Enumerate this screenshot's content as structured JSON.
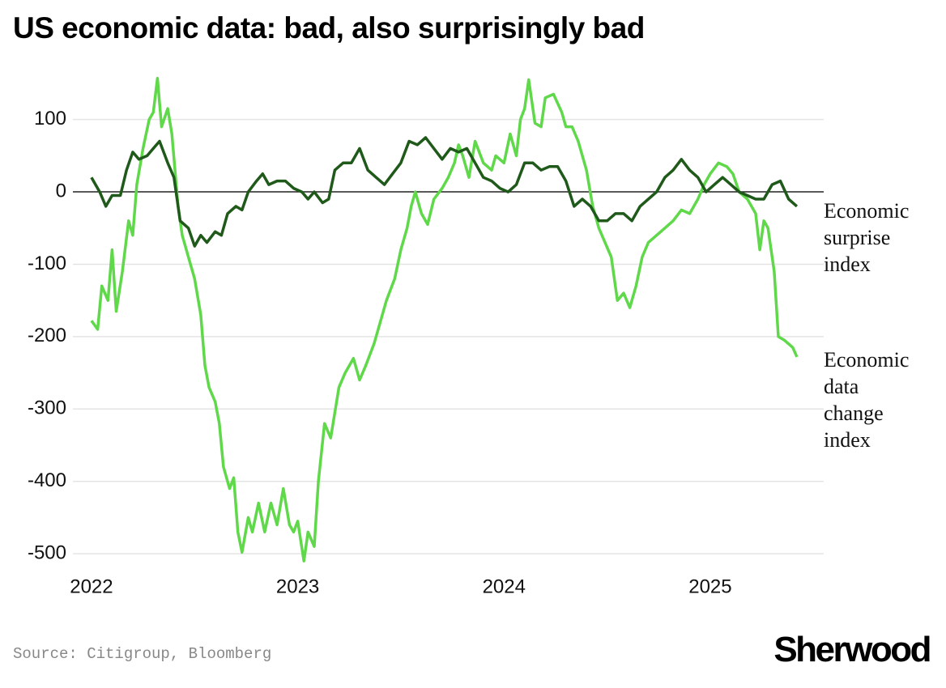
{
  "chart_data": {
    "type": "line",
    "title": "US economic data: bad, also surprisingly bad",
    "source": "Source: Citigroup, Bloomberg",
    "brand": "Sherwood",
    "xlim": [
      2021.91,
      2025.55
    ],
    "xticks": [
      2022,
      2023,
      2024,
      2025
    ],
    "ylim": [
      -520,
      160
    ],
    "yticks": [
      100,
      0,
      -100,
      -200,
      -300,
      -400,
      -500
    ],
    "grid": true,
    "series": [
      {
        "name": "Economic surprise index",
        "color": "#1f5a1a",
        "x": [
          2022.0,
          2022.04,
          2022.07,
          2022.1,
          2022.14,
          2022.17,
          2022.2,
          2022.23,
          2022.27,
          2022.3,
          2022.33,
          2022.37,
          2022.4,
          2022.43,
          2022.47,
          2022.5,
          2022.53,
          2022.56,
          2022.6,
          2022.63,
          2022.66,
          2022.7,
          2022.73,
          2022.76,
          2022.8,
          2022.83,
          2022.86,
          2022.9,
          2022.94,
          2022.98,
          2023.02,
          2023.05,
          2023.08,
          2023.12,
          2023.15,
          2023.18,
          2023.22,
          2023.26,
          2023.3,
          2023.34,
          2023.38,
          2023.42,
          2023.46,
          2023.5,
          2023.54,
          2023.58,
          2023.62,
          2023.66,
          2023.7,
          2023.74,
          2023.78,
          2023.82,
          2023.86,
          2023.9,
          2023.94,
          2023.98,
          2024.02,
          2024.06,
          2024.1,
          2024.14,
          2024.18,
          2024.22,
          2024.26,
          2024.3,
          2024.34,
          2024.38,
          2024.42,
          2024.46,
          2024.5,
          2024.54,
          2024.58,
          2024.62,
          2024.66,
          2024.7,
          2024.74,
          2024.78,
          2024.82,
          2024.86,
          2024.9,
          2024.94,
          2024.98,
          2025.02,
          2025.06,
          2025.1,
          2025.14,
          2025.18,
          2025.22,
          2025.26,
          2025.3,
          2025.34,
          2025.38,
          2025.42
        ],
        "values": [
          20,
          0,
          -20,
          -5,
          -5,
          30,
          55,
          45,
          50,
          60,
          70,
          40,
          20,
          -40,
          -50,
          -75,
          -60,
          -70,
          -55,
          -60,
          -30,
          -20,
          -25,
          0,
          15,
          25,
          10,
          15,
          15,
          5,
          0,
          -10,
          0,
          -15,
          -10,
          30,
          40,
          40,
          60,
          30,
          20,
          10,
          25,
          40,
          70,
          65,
          75,
          60,
          45,
          60,
          55,
          60,
          40,
          20,
          15,
          5,
          0,
          10,
          40,
          40,
          30,
          35,
          35,
          15,
          -20,
          -10,
          -20,
          -40,
          -40,
          -30,
          -30,
          -40,
          -20,
          -10,
          0,
          20,
          30,
          45,
          30,
          20,
          0,
          10,
          20,
          10,
          0,
          -5,
          -10,
          -10,
          10,
          15,
          -10,
          -20
        ]
      },
      {
        "name": "Economic data change index",
        "color": "#5fd84a",
        "x": [
          2022.0,
          2022.03,
          2022.05,
          2022.08,
          2022.1,
          2022.12,
          2022.15,
          2022.18,
          2022.2,
          2022.22,
          2022.25,
          2022.28,
          2022.3,
          2022.32,
          2022.34,
          2022.37,
          2022.39,
          2022.42,
          2022.44,
          2022.47,
          2022.5,
          2022.53,
          2022.55,
          2022.57,
          2022.6,
          2022.62,
          2022.64,
          2022.67,
          2022.69,
          2022.71,
          2022.73,
          2022.76,
          2022.78,
          2022.81,
          2022.84,
          2022.87,
          2022.9,
          2022.93,
          2022.96,
          2022.98,
          2023.0,
          2023.03,
          2023.05,
          2023.08,
          2023.1,
          2023.13,
          2023.16,
          2023.2,
          2023.23,
          2023.27,
          2023.3,
          2023.33,
          2023.37,
          2023.4,
          2023.43,
          2023.47,
          2023.5,
          2023.53,
          2023.55,
          2023.57,
          2023.6,
          2023.63,
          2023.66,
          2023.7,
          2023.73,
          2023.76,
          2023.78,
          2023.8,
          2023.83,
          2023.86,
          2023.9,
          2023.94,
          2023.96,
          2024.0,
          2024.03,
          2024.06,
          2024.08,
          2024.1,
          2024.12,
          2024.15,
          2024.18,
          2024.2,
          2024.24,
          2024.28,
          2024.3,
          2024.33,
          2024.36,
          2024.4,
          2024.43,
          2024.46,
          2024.49,
          2024.52,
          2024.55,
          2024.58,
          2024.61,
          2024.64,
          2024.67,
          2024.7,
          2024.74,
          2024.78,
          2024.82,
          2024.86,
          2024.9,
          2024.94,
          2024.97,
          2025.0,
          2025.04,
          2025.08,
          2025.11,
          2025.14,
          2025.18,
          2025.22,
          2025.24,
          2025.26,
          2025.28,
          2025.31,
          2025.33,
          2025.36,
          2025.4,
          2025.42
        ],
        "values": [
          -178,
          -190,
          -130,
          -150,
          -80,
          -165,
          -110,
          -40,
          -60,
          10,
          60,
          100,
          110,
          157,
          90,
          115,
          80,
          -20,
          -60,
          -90,
          -120,
          -170,
          -240,
          -270,
          -290,
          -320,
          -380,
          -410,
          -395,
          -470,
          -498,
          -450,
          -470,
          -430,
          -470,
          -430,
          -460,
          -410,
          -460,
          -470,
          -455,
          -510,
          -470,
          -490,
          -400,
          -320,
          -340,
          -270,
          -250,
          -230,
          -260,
          -240,
          -210,
          -180,
          -150,
          -120,
          -80,
          -50,
          -20,
          0,
          -30,
          -45,
          -10,
          5,
          20,
          40,
          65,
          50,
          20,
          70,
          40,
          30,
          50,
          40,
          80,
          50,
          100,
          115,
          155,
          95,
          90,
          130,
          135,
          110,
          90,
          90,
          70,
          30,
          -20,
          -50,
          -70,
          -90,
          -150,
          -140,
          -160,
          -130,
          -90,
          -70,
          -60,
          -50,
          -40,
          -25,
          -30,
          -10,
          10,
          25,
          40,
          35,
          25,
          0,
          -10,
          -30,
          -80,
          -40,
          -50,
          -110,
          -200,
          -205,
          -215,
          -228
        ]
      }
    ]
  }
}
